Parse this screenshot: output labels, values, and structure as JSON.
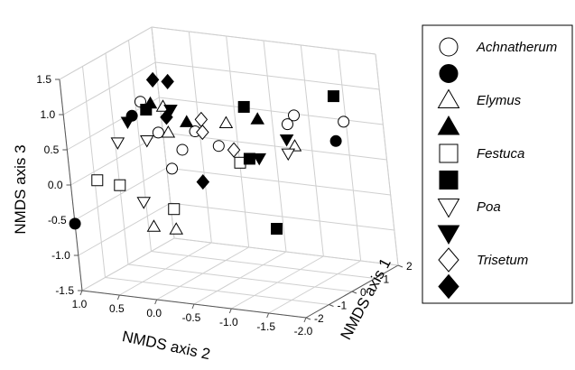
{
  "chart_data": {
    "type": "scatter",
    "projection": "3d",
    "axes": {
      "x": {
        "label": "NMDS axis 1",
        "range": [
          -2,
          2
        ],
        "ticks": [
          "-2",
          "-1",
          "0",
          "1",
          "2"
        ],
        "tick_values": [
          -2,
          -1,
          0,
          1,
          2
        ]
      },
      "y": {
        "label": "NMDS axis 2",
        "range": [
          -2.0,
          1.0
        ],
        "ticks": [
          "1.0",
          "0.5",
          "0.0",
          "-0.5",
          "-1.0",
          "-1.5",
          "-2.0"
        ],
        "tick_values": [
          1.0,
          0.5,
          0.0,
          -0.5,
          -1.0,
          -1.5,
          -2.0
        ]
      },
      "z": {
        "label": "NMDS axis 3",
        "range": [
          -1.5,
          1.5
        ],
        "ticks": [
          "1.5",
          "1.0",
          "0.5",
          "0.0",
          "-0.5",
          "-1.0",
          "-1.5"
        ],
        "tick_values": [
          1.5,
          1.0,
          0.5,
          0.0,
          -0.5,
          -1.0,
          -1.5
        ]
      }
    },
    "grid": true,
    "legend_position": "right",
    "legend": [
      {
        "name": "Achnatherum",
        "marker": "circle",
        "fill": "open"
      },
      {
        "name": "",
        "marker": "circle",
        "fill": "filled"
      },
      {
        "name": "Elymus",
        "marker": "triangle-up",
        "fill": "open"
      },
      {
        "name": "",
        "marker": "triangle-up",
        "fill": "filled"
      },
      {
        "name": "Festuca",
        "marker": "square",
        "fill": "open"
      },
      {
        "name": "",
        "marker": "square",
        "fill": "filled"
      },
      {
        "name": "Poa",
        "marker": "triangle-down",
        "fill": "open"
      },
      {
        "name": "",
        "marker": "triangle-down",
        "fill": "filled"
      },
      {
        "name": "Trisetum",
        "marker": "diamond",
        "fill": "open"
      },
      {
        "name": "",
        "marker": "diamond",
        "fill": "filled"
      }
    ],
    "series": [
      {
        "marker": "circle",
        "fill": "open",
        "points": [
          [
            -0.6,
            0.4,
            1.0
          ],
          [
            -0.9,
            -0.2,
            0.45
          ],
          [
            -0.3,
            -0.2,
            0.6
          ],
          [
            -0.6,
            -0.6,
            0.5
          ],
          [
            0.8,
            -1.2,
            0.75
          ],
          [
            1.0,
            -1.8,
            0.7
          ],
          [
            0.2,
            -1.3,
            0.75
          ],
          [
            -0.2,
            0.2,
            0.0
          ],
          [
            0.0,
            0.4,
            0.45
          ]
        ]
      },
      {
        "marker": "circle",
        "fill": "filled",
        "points": [
          [
            0.2,
            0.8,
            0.6
          ],
          [
            -2.0,
            1.0,
            -0.55
          ],
          [
            0.6,
            -1.8,
            0.5
          ]
        ]
      },
      {
        "marker": "triangle-up",
        "fill": "open",
        "points": [
          [
            -0.3,
            0.2,
            0.9
          ],
          [
            -0.8,
            0.0,
            0.65
          ],
          [
            -0.2,
            -0.6,
            0.75
          ],
          [
            0.4,
            -1.3,
            0.4
          ],
          [
            -1.8,
            0.0,
            -0.5
          ],
          [
            -1.8,
            -0.3,
            -0.5
          ]
        ]
      },
      {
        "marker": "triangle-up",
        "fill": "filled",
        "points": [
          [
            -0.2,
            0.4,
            0.9
          ],
          [
            0.0,
            0.0,
            0.65
          ],
          [
            0.5,
            -0.8,
            0.7
          ]
        ]
      },
      {
        "marker": "square",
        "fill": "open",
        "points": [
          [
            -1.5,
            0.8,
            0.0
          ],
          [
            -1.2,
            0.6,
            -0.1
          ],
          [
            -1.2,
            -0.1,
            -0.35
          ],
          [
            -0.4,
            -0.8,
            0.25
          ]
        ]
      },
      {
        "marker": "square",
        "fill": "filled",
        "points": [
          [
            -0.4,
            0.4,
            0.85
          ],
          [
            1.0,
            -1.7,
            1.05
          ],
          [
            0.3,
            -0.7,
            0.9
          ],
          [
            -0.3,
            -0.9,
            0.3
          ],
          [
            -1.0,
            -1.4,
            -0.5
          ]
        ]
      },
      {
        "marker": "triangle-down",
        "fill": "open",
        "points": [
          [
            -0.5,
            0.8,
            0.35
          ],
          [
            -0.8,
            0.3,
            0.5
          ],
          [
            -1.2,
            0.3,
            -0.3
          ],
          [
            0.1,
            -1.3,
            0.35
          ]
        ]
      },
      {
        "marker": "triangle-down",
        "fill": "filled",
        "points": [
          [
            0.0,
            0.8,
            0.55
          ],
          [
            0.0,
            0.2,
            0.8
          ],
          [
            -0.2,
            -1.0,
            0.3
          ],
          [
            0.1,
            -1.3,
            0.55
          ]
        ]
      },
      {
        "marker": "diamond",
        "fill": "open",
        "points": [
          [
            -0.3,
            -0.3,
            0.6
          ],
          [
            -0.6,
            -0.4,
            0.85
          ],
          [
            -0.3,
            -0.7,
            0.4
          ]
        ]
      },
      {
        "marker": "diamond",
        "fill": "filled",
        "points": [
          [
            0.0,
            0.2,
            1.2
          ],
          [
            0.0,
            0.4,
            1.2
          ],
          [
            -0.5,
            0.1,
            0.8
          ],
          [
            -0.8,
            -0.4,
            0.0
          ]
        ]
      }
    ]
  }
}
